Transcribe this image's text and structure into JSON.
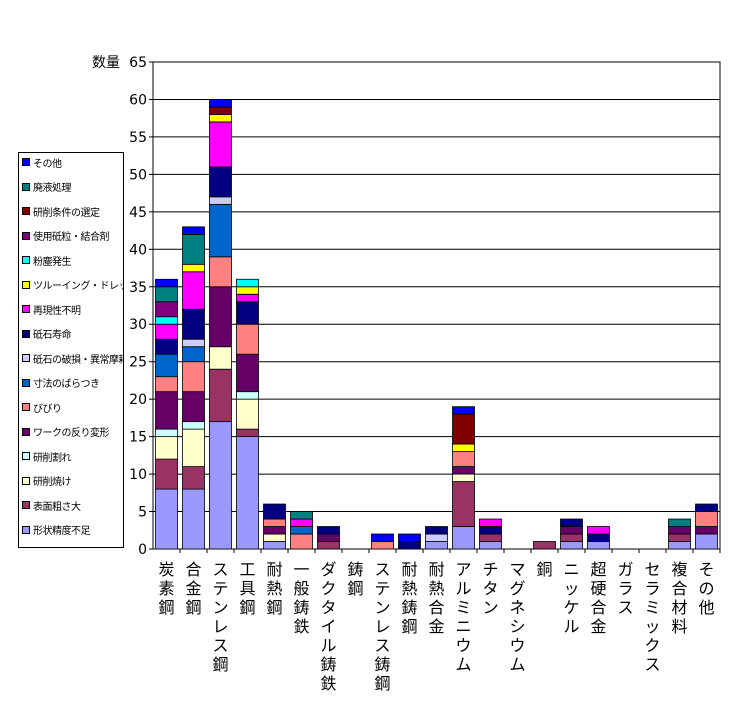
{
  "chart_data": {
    "type": "bar",
    "stacked": true,
    "ylabel": "数量",
    "ylim": [
      0,
      65
    ],
    "yticks": [
      0,
      5,
      10,
      15,
      20,
      25,
      30,
      35,
      40,
      45,
      50,
      55,
      60,
      65
    ],
    "grid": true,
    "legend_position": "left",
    "categories": [
      "炭素鋼",
      "合金鋼",
      "ステンレス鋼",
      "工具鋼",
      "耐熱鋼",
      "一般鋳鉄",
      "ダクタイル鋳鉄",
      "鋳鋼",
      "ステンレス鋳鋼",
      "耐熱鋳鋼",
      "耐熱合金",
      "アルミニウム",
      "チタン",
      "マグネシウム",
      "銅",
      "ニッケル",
      "超硬合金",
      "ガラス",
      "セラミックス",
      "複合材料",
      "その他"
    ],
    "series": [
      {
        "name": "形状精度不足",
        "color": "#9999ff",
        "values": [
          8,
          8,
          17,
          15,
          1,
          0,
          0,
          0,
          0,
          0,
          1,
          3,
          1,
          0,
          0,
          1,
          1,
          0,
          0,
          1,
          2
        ]
      },
      {
        "name": "表面粗さ大",
        "color": "#993366",
        "values": [
          4,
          3,
          7,
          1,
          0,
          0,
          1,
          0,
          0,
          0,
          0,
          6,
          1,
          0,
          1,
          1,
          0,
          0,
          0,
          1,
          0
        ]
      },
      {
        "name": "研削焼け",
        "color": "#ffffcc",
        "values": [
          3,
          5,
          3,
          4,
          1,
          0,
          0,
          0,
          0,
          0,
          0,
          1,
          0,
          0,
          0,
          0,
          0,
          0,
          0,
          0,
          0
        ]
      },
      {
        "name": "研削割れ",
        "color": "#ccffff",
        "values": [
          1,
          1,
          0,
          1,
          0,
          0,
          0,
          0,
          0,
          0,
          0,
          0,
          0,
          0,
          0,
          0,
          0,
          0,
          0,
          0,
          0
        ]
      },
      {
        "name": "ワークの反り変形",
        "color": "#660066",
        "values": [
          5,
          4,
          8,
          5,
          1,
          0,
          1,
          0,
          0,
          0,
          0,
          1,
          0,
          0,
          0,
          1,
          0,
          0,
          0,
          1,
          1
        ]
      },
      {
        "name": "びびり",
        "color": "#ff8080",
        "values": [
          2,
          4,
          4,
          4,
          1,
          2,
          0,
          0,
          1,
          0,
          0,
          2,
          0,
          0,
          0,
          0,
          0,
          0,
          0,
          0,
          2
        ]
      },
      {
        "name": "寸法のばらつき",
        "color": "#0066cc",
        "values": [
          3,
          2,
          7,
          0,
          0,
          1,
          0,
          0,
          0,
          0,
          0,
          0,
          0,
          0,
          0,
          0,
          0,
          0,
          0,
          0,
          0
        ]
      },
      {
        "name": "砥石の破損・異常摩耗",
        "color": "#ccccff",
        "values": [
          0,
          1,
          1,
          0,
          0,
          0,
          0,
          0,
          0,
          0,
          1,
          0,
          0,
          0,
          0,
          0,
          0,
          0,
          0,
          0,
          0
        ]
      },
      {
        "name": "砥石寿命",
        "color": "#000080",
        "values": [
          2,
          4,
          4,
          3,
          2,
          0,
          1,
          0,
          0,
          1,
          1,
          0,
          1,
          0,
          0,
          1,
          1,
          0,
          0,
          0,
          1
        ]
      },
      {
        "name": "再現性不明",
        "color": "#ff00ff",
        "values": [
          2,
          5,
          6,
          1,
          0,
          1,
          0,
          0,
          0,
          0,
          0,
          0,
          1,
          0,
          0,
          0,
          1,
          0,
          0,
          0,
          0
        ]
      },
      {
        "name": "ツルーイング・ドレッシング",
        "color": "#ffff00",
        "values": [
          0,
          1,
          1,
          1,
          0,
          0,
          0,
          0,
          0,
          0,
          0,
          1,
          0,
          0,
          0,
          0,
          0,
          0,
          0,
          0,
          0
        ]
      },
      {
        "name": "粉塵発生",
        "color": "#00ffff",
        "values": [
          1,
          0,
          0,
          1,
          0,
          0,
          0,
          0,
          0,
          0,
          0,
          0,
          0,
          0,
          0,
          0,
          0,
          0,
          0,
          0,
          0
        ]
      },
      {
        "name": "使用砥粒・結合剤",
        "color": "#800080",
        "values": [
          2,
          0,
          0,
          0,
          0,
          0,
          0,
          0,
          0,
          0,
          0,
          0,
          0,
          0,
          0,
          0,
          0,
          0,
          0,
          0,
          0
        ]
      },
      {
        "name": "研削条件の選定",
        "color": "#800000",
        "values": [
          0,
          0,
          1,
          0,
          0,
          0,
          0,
          0,
          0,
          0,
          0,
          4,
          0,
          0,
          0,
          0,
          0,
          0,
          0,
          0,
          0
        ]
      },
      {
        "name": "廃液処理",
        "color": "#008080",
        "values": [
          2,
          4,
          0,
          0,
          0,
          1,
          0,
          0,
          0,
          0,
          0,
          0,
          0,
          0,
          0,
          0,
          0,
          0,
          0,
          1,
          0
        ]
      },
      {
        "name": "その他",
        "color": "#0000ff",
        "values": [
          1,
          1,
          1,
          0,
          0,
          0,
          0,
          0,
          1,
          1,
          0,
          1,
          0,
          0,
          0,
          0,
          0,
          0,
          0,
          0,
          0
        ]
      }
    ]
  }
}
